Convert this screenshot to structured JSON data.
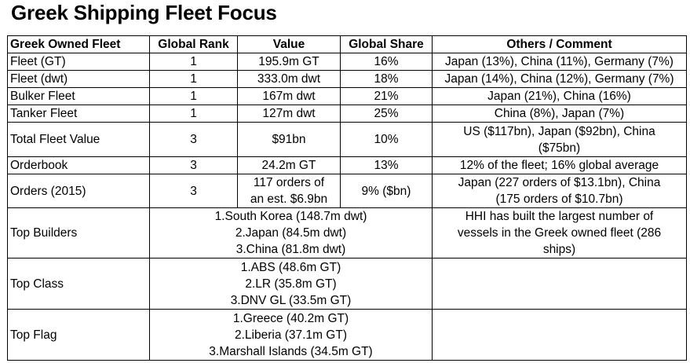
{
  "title": "Greek Shipping Fleet Focus",
  "headers": [
    "Greek Owned Fleet",
    "Global Rank",
    "Value",
    "Global Share",
    "Others / Comment"
  ],
  "rows": [
    {
      "label": "Fleet (GT)",
      "rank": "1",
      "value": "195.9m GT",
      "share": "16%",
      "comment": "Japan (13%), China (11%), Germany (7%)"
    },
    {
      "label": "Fleet (dwt)",
      "rank": "1",
      "value": "333.0m dwt",
      "share": "18%",
      "comment": "Japan (14%), China (12%), Germany (7%)"
    },
    {
      "label": "Bulker Fleet",
      "rank": "1",
      "value": "167m dwt",
      "share": "21%",
      "comment": "Japan (21%), China (16%)"
    },
    {
      "label": "Tanker Fleet",
      "rank": "1",
      "value": "127m dwt",
      "share": "25%",
      "comment": "China (8%), Japan (7%)"
    },
    {
      "label": "Total Fleet Value",
      "rank": "3",
      "value": "$91bn",
      "share": "10%",
      "comment": [
        "US ($117bn), Japan ($92bn), China",
        "($75bn)"
      ]
    },
    {
      "label": "Orderbook",
      "rank": "3",
      "value": "24.2m GT",
      "share": "13%",
      "comment": "12% of the fleet; 16% global average"
    },
    {
      "label": "Orders (2015)",
      "rank": "3",
      "value": [
        "117 orders of",
        "an est. $6.9bn"
      ],
      "share": "9% ($bn)",
      "comment": [
        "Japan (227 orders of $13.1bn), China",
        "(175 orders of $10.7bn)"
      ]
    }
  ],
  "top_rows": [
    {
      "label": "Top Builders",
      "items": [
        "1.South Korea (148.7m dwt)",
        "2.Japan (84.5m dwt)",
        "3.China (81.8m dwt)"
      ],
      "comment": [
        "HHI has built the largest number of",
        "vessels in the Greek owned fleet (286",
        "ships)"
      ]
    },
    {
      "label": "Top Class",
      "items": [
        "1.ABS (48.6m GT)",
        "2.LR (35.8m GT)",
        "3.DNV GL (33.5m GT)"
      ],
      "comment": []
    },
    {
      "label": "Top Flag",
      "items": [
        "1.Greece (40.2m GT)",
        "2.Liberia (37.1m GT)",
        "3.Marshall Islands (34.5m GT)"
      ],
      "comment": []
    }
  ]
}
